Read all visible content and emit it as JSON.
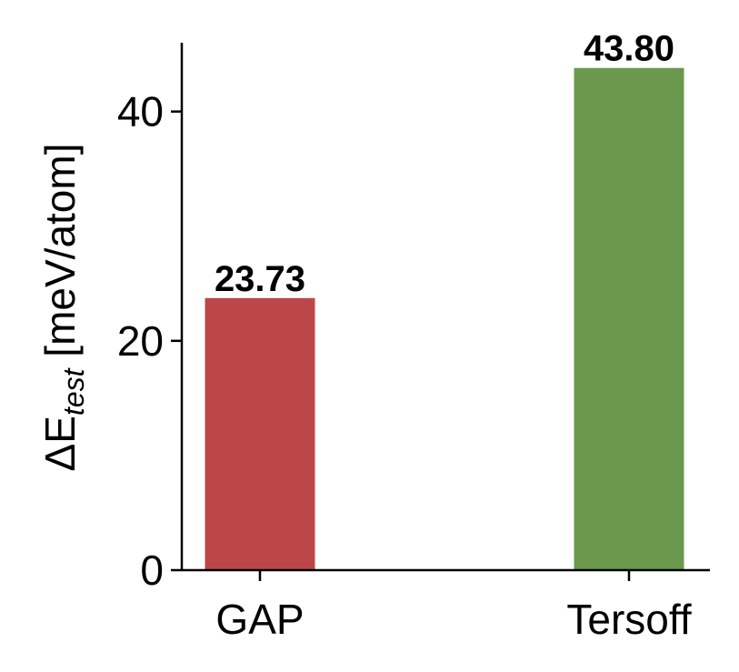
{
  "chart_data": {
    "type": "bar",
    "categories": [
      "GAP",
      "Tersoff"
    ],
    "values": [
      23.73,
      43.8
    ],
    "value_labels": [
      "23.73",
      "43.80"
    ],
    "colors": [
      "#bc4749",
      "#6a994e"
    ],
    "ylabel": {
      "base": "ΔE",
      "subscript": "test",
      "unit": "[meV/atom]"
    },
    "ylim": [
      0,
      46
    ],
    "yticks": [
      0,
      20,
      40
    ],
    "ytick_labels": [
      "0",
      "20",
      "40"
    ],
    "xlabel": "",
    "title": "",
    "grid": false,
    "legend": "none"
  }
}
